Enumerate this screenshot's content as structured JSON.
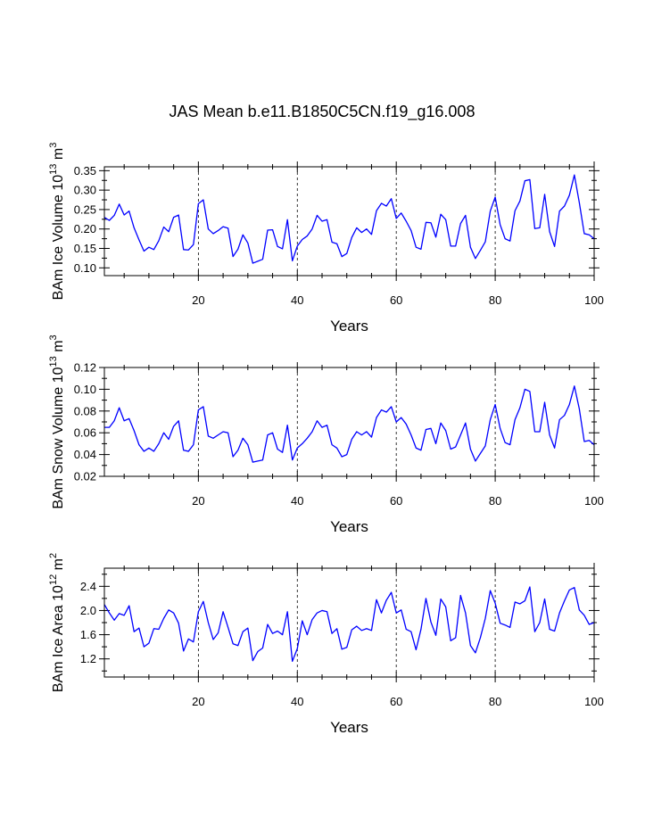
{
  "title": "JAS Mean b.e11.B1850C5CN.f19_g16.008",
  "colors": {
    "line": "#0000ff",
    "axis": "#000000",
    "grid": "#000000"
  },
  "chart_data": [
    {
      "type": "line",
      "id": "ice-volume",
      "ylabel": {
        "main": "BAm Ice Volume 10",
        "sup": "13",
        "unit": " m",
        "unit_sup": "3"
      },
      "xlabel": "Years",
      "xlim": [
        1,
        100
      ],
      "ylim": [
        0.08,
        0.36
      ],
      "xticks": [
        20,
        40,
        60,
        80,
        100
      ],
      "xtick_labels": [
        "20",
        "40",
        "60",
        "80",
        "100"
      ],
      "yticks": [
        0.1,
        0.15,
        0.2,
        0.25,
        0.3,
        0.35
      ],
      "ytick_labels": [
        "0.10",
        "0.15",
        "0.20",
        "0.25",
        "0.30",
        "0.35"
      ],
      "vlines": [
        20,
        40,
        60,
        80
      ],
      "values": [
        0.23,
        0.222,
        0.235,
        0.264,
        0.236,
        0.246,
        0.203,
        0.172,
        0.143,
        0.153,
        0.147,
        0.17,
        0.205,
        0.193,
        0.23,
        0.236,
        0.147,
        0.146,
        0.16,
        0.265,
        0.275,
        0.2,
        0.188,
        0.196,
        0.206,
        0.202,
        0.129,
        0.148,
        0.185,
        0.164,
        0.112,
        0.117,
        0.122,
        0.197,
        0.198,
        0.155,
        0.149,
        0.224,
        0.118,
        0.156,
        0.173,
        0.182,
        0.2,
        0.235,
        0.22,
        0.224,
        0.166,
        0.162,
        0.129,
        0.137,
        0.178,
        0.203,
        0.191,
        0.2,
        0.186,
        0.247,
        0.266,
        0.259,
        0.278,
        0.227,
        0.241,
        0.22,
        0.196,
        0.153,
        0.148,
        0.217,
        0.216,
        0.179,
        0.238,
        0.224,
        0.156,
        0.156,
        0.214,
        0.235,
        0.153,
        0.124,
        0.145,
        0.167,
        0.246,
        0.282,
        0.211,
        0.175,
        0.169,
        0.247,
        0.272,
        0.324,
        0.327,
        0.201,
        0.203,
        0.289,
        0.193,
        0.155,
        0.246,
        0.259,
        0.287,
        0.339,
        0.268,
        0.188,
        0.185,
        0.175
      ]
    },
    {
      "type": "line",
      "id": "snow-volume",
      "ylabel": {
        "main": "BAm Snow Volume 10",
        "sup": "13",
        "unit": " m",
        "unit_sup": "3"
      },
      "xlabel": "Years",
      "xlim": [
        1,
        100
      ],
      "ylim": [
        0.02,
        0.12
      ],
      "xticks": [
        20,
        40,
        60,
        80,
        100
      ],
      "xtick_labels": [
        "20",
        "40",
        "60",
        "80",
        "100"
      ],
      "yticks": [
        0.02,
        0.04,
        0.06,
        0.08,
        0.1,
        0.12
      ],
      "ytick_labels": [
        "0.02",
        "0.04",
        "0.06",
        "0.08",
        "0.10",
        "0.12"
      ],
      "vlines": [
        20,
        40,
        60,
        80
      ],
      "values": [
        0.065,
        0.065,
        0.071,
        0.083,
        0.071,
        0.073,
        0.062,
        0.049,
        0.043,
        0.046,
        0.043,
        0.05,
        0.06,
        0.054,
        0.066,
        0.071,
        0.044,
        0.043,
        0.049,
        0.081,
        0.084,
        0.057,
        0.055,
        0.058,
        0.061,
        0.06,
        0.038,
        0.044,
        0.055,
        0.049,
        0.033,
        0.034,
        0.035,
        0.058,
        0.06,
        0.045,
        0.042,
        0.067,
        0.035,
        0.046,
        0.05,
        0.055,
        0.061,
        0.071,
        0.065,
        0.067,
        0.049,
        0.046,
        0.038,
        0.04,
        0.054,
        0.061,
        0.058,
        0.061,
        0.056,
        0.074,
        0.081,
        0.079,
        0.084,
        0.07,
        0.074,
        0.068,
        0.058,
        0.046,
        0.044,
        0.063,
        0.064,
        0.05,
        0.069,
        0.062,
        0.045,
        0.047,
        0.058,
        0.069,
        0.045,
        0.034,
        0.041,
        0.048,
        0.072,
        0.086,
        0.064,
        0.051,
        0.049,
        0.072,
        0.083,
        0.1,
        0.098,
        0.061,
        0.061,
        0.088,
        0.058,
        0.046,
        0.072,
        0.076,
        0.086,
        0.103,
        0.082,
        0.052,
        0.053,
        0.049
      ]
    },
    {
      "type": "line",
      "id": "ice-area",
      "ylabel": {
        "main": "BAm Ice Area 10",
        "sup": "12",
        "unit": " m",
        "unit_sup": "2"
      },
      "xlabel": "Years",
      "xlim": [
        1,
        100
      ],
      "ylim": [
        0.9,
        2.7
      ],
      "xticks": [
        20,
        40,
        60,
        80,
        100
      ],
      "xtick_labels": [
        "20",
        "40",
        "60",
        "80",
        "100"
      ],
      "yticks": [
        1.2,
        1.6,
        2.0,
        2.4
      ],
      "ytick_labels": [
        "1.2",
        "1.6",
        "2.0",
        "2.4"
      ],
      "vlines": [
        20,
        40,
        60,
        80
      ],
      "values": [
        2.1,
        1.96,
        1.84,
        1.95,
        1.92,
        2.08,
        1.65,
        1.71,
        1.4,
        1.46,
        1.7,
        1.69,
        1.87,
        2.01,
        1.96,
        1.79,
        1.33,
        1.53,
        1.48,
        1.98,
        2.15,
        1.8,
        1.52,
        1.63,
        1.98,
        1.72,
        1.45,
        1.42,
        1.65,
        1.71,
        1.17,
        1.32,
        1.38,
        1.77,
        1.62,
        1.66,
        1.6,
        1.98,
        1.16,
        1.37,
        1.83,
        1.6,
        1.85,
        1.96,
        2.0,
        1.98,
        1.62,
        1.7,
        1.36,
        1.39,
        1.68,
        1.74,
        1.67,
        1.7,
        1.67,
        2.18,
        1.96,
        2.17,
        2.3,
        1.96,
        2.01,
        1.69,
        1.65,
        1.35,
        1.69,
        2.2,
        1.81,
        1.59,
        2.19,
        2.06,
        1.5,
        1.55,
        2.25,
        1.96,
        1.42,
        1.3,
        1.55,
        1.87,
        2.33,
        2.12,
        1.79,
        1.76,
        1.72,
        2.14,
        2.11,
        2.16,
        2.39,
        1.65,
        1.8,
        2.19,
        1.69,
        1.66,
        1.96,
        2.16,
        2.34,
        2.38,
        2.01,
        1.92,
        1.77,
        1.8
      ]
    }
  ]
}
